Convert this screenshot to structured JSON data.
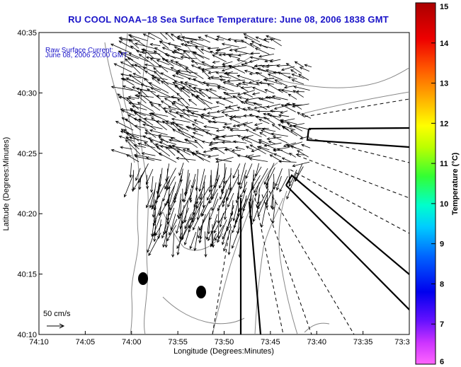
{
  "title": "RU COOL  NOAA–18  Sea Surface Temperature:  June 08, 2006 1838 GMT",
  "current_label_line1": "Raw Surface Current:",
  "current_label_line2": "June 08, 2006 20:00 GMT",
  "scale_label": "50 cm/s",
  "x_axis": {
    "label": "Longitude (Degrees:Minutes)",
    "ticks": [
      "74:10",
      "74:05",
      "74:00",
      "73:55",
      "73:50",
      "73:45",
      "73:40",
      "73:35",
      "73:3"
    ]
  },
  "y_axis": {
    "label": "Latitude (Degrees:Minutes)",
    "ticks": [
      "40:35",
      "40:30",
      "40:25",
      "40:20",
      "40:15",
      "40:10"
    ]
  },
  "colorbar": {
    "label": "Temperature (°C)",
    "ticks": [
      "15",
      "14",
      "13",
      "12",
      "11",
      "10",
      "9",
      "8",
      "7",
      "6"
    ],
    "range": [
      6,
      15
    ]
  },
  "colors": {
    "title": "#1a14c8",
    "land_contour": "#888888",
    "arrows": "#000000"
  }
}
